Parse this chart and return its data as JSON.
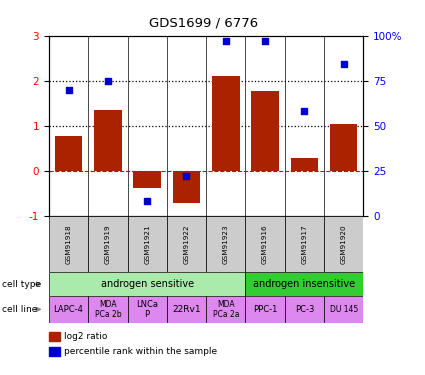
{
  "title": "GDS1699 / 6776",
  "samples": [
    "GSM91918",
    "GSM91919",
    "GSM91921",
    "GSM91922",
    "GSM91923",
    "GSM91916",
    "GSM91917",
    "GSM91920"
  ],
  "log2_ratio": [
    0.78,
    1.35,
    -0.38,
    -0.72,
    2.1,
    1.78,
    0.28,
    1.03
  ],
  "pct_rank": [
    70,
    75,
    8,
    22,
    97,
    97,
    58,
    84
  ],
  "bar_color": "#aa2200",
  "dot_color": "#0000cc",
  "ylim_left": [
    -1,
    3
  ],
  "ylim_right": [
    0,
    100
  ],
  "left_ticks": [
    -1,
    0,
    1,
    2,
    3
  ],
  "right_ticks": [
    0,
    25,
    50,
    75,
    100
  ],
  "right_tick_labels": [
    "0",
    "25",
    "50",
    "75",
    "100%"
  ],
  "dotted_lines": [
    1.0,
    2.0
  ],
  "zero_line_color": "#cc0000",
  "cell_type_sensitive_color": "#aaeaaa",
  "cell_type_insensitive_color": "#33cc33",
  "cell_line_color": "#dd88ee",
  "sample_box_color": "#cccccc",
  "cell_line_labels": [
    "LAPC-4",
    "MDA\nPCa 2b",
    "LNCa\nP",
    "22Rv1",
    "MDA\nPCa 2a",
    "PPC-1",
    "PC-3",
    "DU 145"
  ],
  "cell_line_fontsizes": [
    6,
    5.5,
    6,
    6.5,
    5.5,
    6,
    6,
    5.5
  ]
}
